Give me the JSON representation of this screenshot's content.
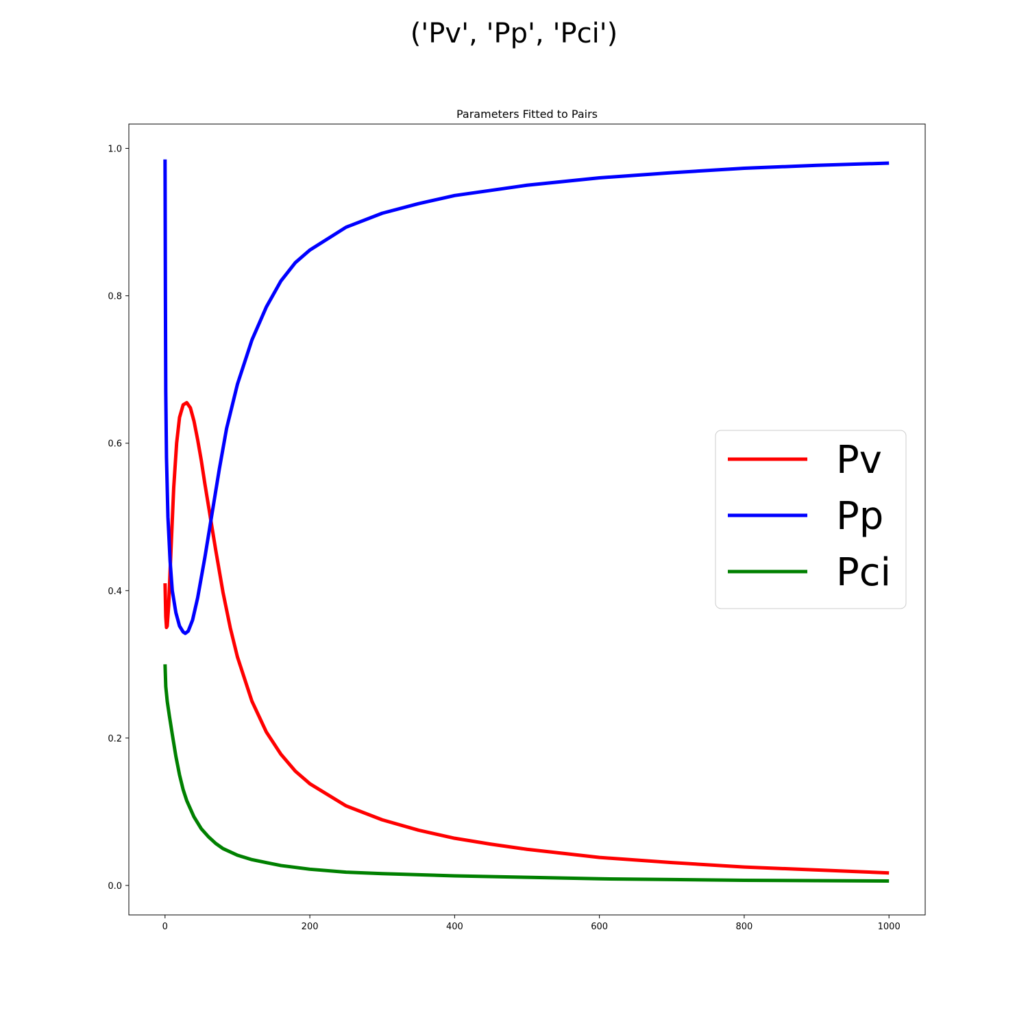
{
  "figure": {
    "suptitle": "('Pv', 'Pp', 'Pci')"
  },
  "chart_data": {
    "type": "line",
    "title": "Parameters Fitted to Pairs",
    "xlabel": "",
    "ylabel": "",
    "xlim": [
      -50,
      1050
    ],
    "ylim": [
      -0.04,
      1.033
    ],
    "xticks": [
      0,
      200,
      400,
      600,
      800,
      1000
    ],
    "xtick_labels": [
      "0",
      "200",
      "400",
      "600",
      "800",
      "1000"
    ],
    "yticks": [
      0.0,
      0.2,
      0.4,
      0.6,
      0.8,
      1.0
    ],
    "ytick_labels": [
      "0.0",
      "0.2",
      "0.4",
      "0.6",
      "0.8",
      "1.0"
    ],
    "grid": false,
    "legend_position": "center-right",
    "series": [
      {
        "name": "Pv",
        "color": "#ff0000",
        "points": [
          [
            0,
            0.41
          ],
          [
            1,
            0.365
          ],
          [
            2,
            0.35
          ],
          [
            3,
            0.352
          ],
          [
            5,
            0.38
          ],
          [
            8,
            0.45
          ],
          [
            12,
            0.54
          ],
          [
            16,
            0.6
          ],
          [
            20,
            0.635
          ],
          [
            25,
            0.652
          ],
          [
            30,
            0.655
          ],
          [
            35,
            0.648
          ],
          [
            40,
            0.63
          ],
          [
            45,
            0.605
          ],
          [
            50,
            0.577
          ],
          [
            55,
            0.545
          ],
          [
            60,
            0.515
          ],
          [
            70,
            0.455
          ],
          [
            80,
            0.398
          ],
          [
            90,
            0.35
          ],
          [
            100,
            0.31
          ],
          [
            120,
            0.25
          ],
          [
            140,
            0.208
          ],
          [
            160,
            0.178
          ],
          [
            180,
            0.155
          ],
          [
            200,
            0.138
          ],
          [
            250,
            0.108
          ],
          [
            300,
            0.089
          ],
          [
            350,
            0.075
          ],
          [
            400,
            0.064
          ],
          [
            450,
            0.056
          ],
          [
            500,
            0.049
          ],
          [
            600,
            0.038
          ],
          [
            700,
            0.031
          ],
          [
            800,
            0.025
          ],
          [
            900,
            0.021
          ],
          [
            1000,
            0.017
          ]
        ]
      },
      {
        "name": "Pp",
        "color": "#0000ff",
        "points": [
          [
            0,
            0.985
          ],
          [
            0.5,
            0.8
          ],
          [
            1,
            0.67
          ],
          [
            2,
            0.58
          ],
          [
            4,
            0.5
          ],
          [
            7,
            0.44
          ],
          [
            10,
            0.4
          ],
          [
            15,
            0.37
          ],
          [
            20,
            0.352
          ],
          [
            25,
            0.344
          ],
          [
            28,
            0.342
          ],
          [
            32,
            0.345
          ],
          [
            38,
            0.36
          ],
          [
            45,
            0.39
          ],
          [
            55,
            0.445
          ],
          [
            65,
            0.505
          ],
          [
            75,
            0.565
          ],
          [
            85,
            0.62
          ],
          [
            100,
            0.68
          ],
          [
            120,
            0.74
          ],
          [
            140,
            0.785
          ],
          [
            160,
            0.82
          ],
          [
            180,
            0.845
          ],
          [
            200,
            0.862
          ],
          [
            250,
            0.893
          ],
          [
            300,
            0.912
          ],
          [
            350,
            0.925
          ],
          [
            400,
            0.936
          ],
          [
            450,
            0.943
          ],
          [
            500,
            0.95
          ],
          [
            600,
            0.96
          ],
          [
            700,
            0.967
          ],
          [
            800,
            0.973
          ],
          [
            900,
            0.977
          ],
          [
            1000,
            0.98
          ]
        ]
      },
      {
        "name": "Pci",
        "color": "#008000",
        "points": [
          [
            0,
            0.3
          ],
          [
            1,
            0.27
          ],
          [
            3,
            0.25
          ],
          [
            6,
            0.23
          ],
          [
            10,
            0.205
          ],
          [
            15,
            0.175
          ],
          [
            20,
            0.15
          ],
          [
            25,
            0.13
          ],
          [
            30,
            0.115
          ],
          [
            40,
            0.093
          ],
          [
            50,
            0.077
          ],
          [
            60,
            0.066
          ],
          [
            70,
            0.057
          ],
          [
            80,
            0.05
          ],
          [
            100,
            0.041
          ],
          [
            120,
            0.035
          ],
          [
            140,
            0.031
          ],
          [
            160,
            0.027
          ],
          [
            200,
            0.022
          ],
          [
            250,
            0.018
          ],
          [
            300,
            0.016
          ],
          [
            400,
            0.013
          ],
          [
            500,
            0.011
          ],
          [
            600,
            0.009
          ],
          [
            700,
            0.008
          ],
          [
            800,
            0.007
          ],
          [
            900,
            0.0065
          ],
          [
            1000,
            0.006
          ]
        ]
      }
    ]
  }
}
